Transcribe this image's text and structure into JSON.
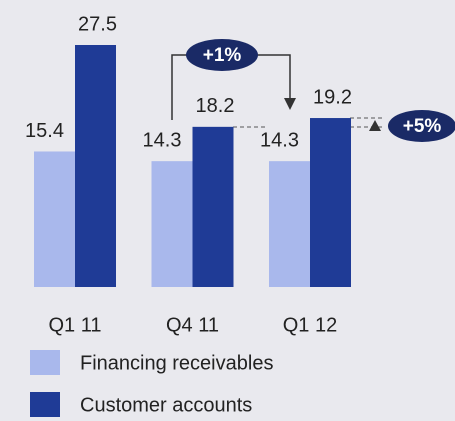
{
  "chart_data": {
    "type": "bar",
    "categories": [
      "Q1 11",
      "Q4 11",
      "Q1 12"
    ],
    "series": [
      {
        "name": "Financing receivables",
        "color": "#a9b8ec",
        "values": [
          15.4,
          14.3,
          14.3
        ]
      },
      {
        "name": "Customer accounts",
        "color": "#1f3b96",
        "values": [
          27.5,
          18.2,
          19.2
        ]
      }
    ],
    "ylim": [
      0,
      30
    ],
    "annotations": [
      "+1%",
      "+5%"
    ]
  }
}
